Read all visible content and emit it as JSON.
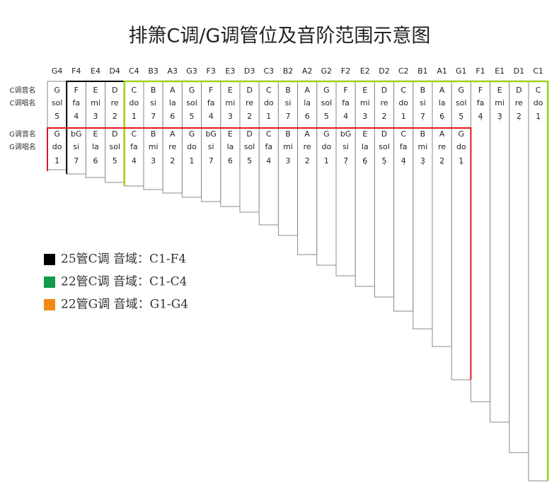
{
  "title": "排箫C调/G调管位及音阶范围示意图",
  "row_labels": [
    "C调音名",
    "C调唱名",
    "G调音名",
    "G调唱名"
  ],
  "headers": [
    "G4",
    "F4",
    "E4",
    "D4",
    "C4",
    "B3",
    "A3",
    "G3",
    "F3",
    "E3",
    "D3",
    "C3",
    "B2",
    "A2",
    "G2",
    "F2",
    "E2",
    "D2",
    "C2",
    "B1",
    "A1",
    "G1",
    "F1",
    "E1",
    "D1",
    "C1"
  ],
  "c_key": {
    "names": [
      "G",
      "F",
      "E",
      "D",
      "C",
      "B",
      "A",
      "G",
      "F",
      "E",
      "D",
      "C",
      "B",
      "A",
      "G",
      "F",
      "E",
      "D",
      "C",
      "B",
      "A",
      "G",
      "F",
      "E",
      "D",
      "C"
    ],
    "syllables": [
      "sol",
      "fa",
      "mi",
      "re",
      "do",
      "si",
      "la",
      "sol",
      "fa",
      "mi",
      "re",
      "do",
      "si",
      "la",
      "sol",
      "fa",
      "mi",
      "re",
      "do",
      "si",
      "la",
      "sol",
      "fa",
      "mi",
      "re",
      "do"
    ],
    "numbers": [
      "5̇",
      "4̇",
      "3̇",
      "2̇",
      "1̇",
      "7",
      "6",
      "5",
      "4",
      "3",
      "2",
      "1",
      "7",
      "6",
      "5",
      "4",
      "3",
      "2",
      "1",
      "7̣",
      "6̣",
      "5̣",
      "4̣",
      "3̣",
      "2̣",
      "1̣"
    ]
  },
  "g_key": {
    "names": [
      "G",
      "bG",
      "E",
      "D",
      "C",
      "B",
      "A",
      "G",
      "bG",
      "E",
      "D",
      "C",
      "B",
      "A",
      "G",
      "bG",
      "E",
      "D",
      "C",
      "B",
      "A",
      "G"
    ],
    "syllables": [
      "do",
      "si",
      "la",
      "sol",
      "fa",
      "mi",
      "re",
      "do",
      "si",
      "la",
      "sol",
      "fa",
      "mi",
      "re",
      "do",
      "si",
      "la",
      "sol",
      "fa",
      "mi",
      "re",
      "do"
    ],
    "numbers": [
      "1̇",
      "7",
      "6",
      "5",
      "4",
      "3",
      "2",
      "1",
      "7",
      "6",
      "5",
      "4",
      "3",
      "2",
      "1",
      "7̣",
      "6̣",
      "5̣",
      "4̣",
      "3̣",
      "2̣",
      "1̣"
    ]
  },
  "legend": [
    {
      "label": "25管C调 音域：C1-F4",
      "color": "#000000"
    },
    {
      "label": "22管C调 音域：C1-C4",
      "color": "#129a48"
    },
    {
      "label": "22管G调 音域：G1-G4",
      "color": "#f08a12"
    }
  ]
}
